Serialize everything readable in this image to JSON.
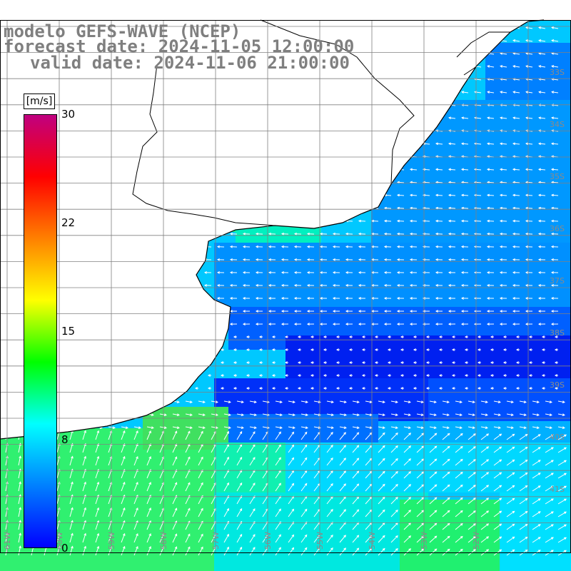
{
  "header": {
    "line1": "modelo GEFS-WAVE (NCEP)",
    "line2": "forecast date: 2024-11-05 12:00:00",
    "line3": "valid date: 2024-11-06 21:00:00"
  },
  "colorbar": {
    "unit": "[m/s]",
    "ticks": [
      "30",
      "22",
      "15",
      "8",
      "0"
    ],
    "colors": [
      "#0000ff",
      "#0080ff",
      "#00ffff",
      "#00ff00",
      "#ffff00",
      "#ff8000",
      "#ff0000",
      "#c00080"
    ]
  },
  "map": {
    "lat_labels": [
      "33S",
      "34S",
      "35S",
      "36S",
      "37S",
      "38S",
      "39S",
      "40S",
      "41S"
    ],
    "lon_labels": [
      "61W",
      "60W",
      "59W",
      "58W",
      "57W",
      "56W",
      "55W",
      "54W",
      "53W",
      "52W"
    ],
    "land_color": "#ffffff",
    "coast_color": "#000000",
    "grid_color": "#808080"
  }
}
